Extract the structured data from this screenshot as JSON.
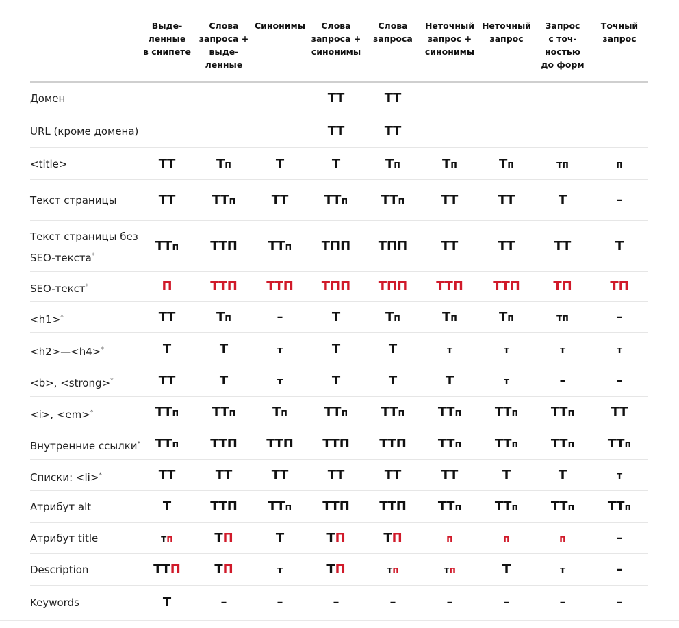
{
  "columns": [
    "Выде-\nленные\nв снипете",
    "Слова\nзапроса +\nвыде-\nленные",
    "Синонимы",
    "Слова\nзапроса +\nсинонимы",
    "Слова\nзапроса",
    "Неточный\nзапрос +\nсинонимы",
    "Неточный\nзапрос",
    "Запрос\nс точ-\nностью\nдо форм",
    "Точный\nзапрос"
  ],
  "colors": {
    "red": "#d01a2a",
    "black": "#111111",
    "header_rule": "#cfcfcf",
    "row_rule": "#e6e6e6"
  },
  "rows": [
    {
      "label": "Домен",
      "star": "",
      "cells": [
        "",
        "",
        "",
        "[{\"t\":\"ТТ\",\"s\":\"b\",\"c\":\"k\"}]",
        "[{\"t\":\"ТТ\",\"s\":\"b\",\"c\":\"k\"}]",
        "",
        "",
        "",
        ""
      ]
    },
    {
      "label": "URL (кроме домена)",
      "star": "",
      "cells": [
        "",
        "",
        "",
        "[{\"t\":\"ТТ\",\"s\":\"b\",\"c\":\"k\"}]",
        "[{\"t\":\"ТТ\",\"s\":\"b\",\"c\":\"k\"}]",
        "",
        "",
        "",
        ""
      ]
    },
    {
      "label": "<title>",
      "star": "",
      "cells": [
        "[{\"t\":\"ТТ\",\"s\":\"b\",\"c\":\"k\"}]",
        "[{\"t\":\"Т\",\"s\":\"b\",\"c\":\"k\"},{\"t\":\"п\",\"s\":\"s\",\"c\":\"k\"}]",
        "[{\"t\":\"Т\",\"s\":\"b\",\"c\":\"k\"}]",
        "[{\"t\":\"Т\",\"s\":\"b\",\"c\":\"k\"}]",
        "[{\"t\":\"Т\",\"s\":\"b\",\"c\":\"k\"},{\"t\":\"п\",\"s\":\"s\",\"c\":\"k\"}]",
        "[{\"t\":\"Т\",\"s\":\"b\",\"c\":\"k\"},{\"t\":\"п\",\"s\":\"s\",\"c\":\"k\"}]",
        "[{\"t\":\"Т\",\"s\":\"b\",\"c\":\"k\"},{\"t\":\"п\",\"s\":\"s\",\"c\":\"k\"}]",
        "[{\"t\":\"тп\",\"s\":\"s\",\"c\":\"k\"}]",
        "[{\"t\":\"п\",\"s\":\"s\",\"c\":\"k\"}]"
      ]
    },
    {
      "label": "Текст страницы",
      "star": "",
      "cells": [
        "[{\"t\":\"ТТ\",\"s\":\"b\",\"c\":\"k\"}]",
        "[{\"t\":\"ТТ\",\"s\":\"b\",\"c\":\"k\"},{\"t\":\"п\",\"s\":\"s\",\"c\":\"k\"}]",
        "[{\"t\":\"ТТ\",\"s\":\"b\",\"c\":\"k\"}]",
        "[{\"t\":\"ТТ\",\"s\":\"b\",\"c\":\"k\"},{\"t\":\"п\",\"s\":\"s\",\"c\":\"k\"}]",
        "[{\"t\":\"ТТ\",\"s\":\"b\",\"c\":\"k\"},{\"t\":\"п\",\"s\":\"s\",\"c\":\"k\"}]",
        "[{\"t\":\"ТТ\",\"s\":\"b\",\"c\":\"k\"}]",
        "[{\"t\":\"ТТ\",\"s\":\"b\",\"c\":\"k\"}]",
        "[{\"t\":\"Т\",\"s\":\"b\",\"c\":\"k\"}]",
        "[{\"t\":\"–\",\"s\":\"b\",\"c\":\"k\"}]"
      ]
    },
    {
      "label": "Текст страницы без\nSEO-текста",
      "star": "*",
      "cells": [
        "[{\"t\":\"ТТ\",\"s\":\"b\",\"c\":\"k\"},{\"t\":\"п\",\"s\":\"s\",\"c\":\"k\"}]",
        "[{\"t\":\"ТТП\",\"s\":\"b\",\"c\":\"k\"}]",
        "[{\"t\":\"ТТ\",\"s\":\"b\",\"c\":\"k\"},{\"t\":\"п\",\"s\":\"s\",\"c\":\"k\"}]",
        "[{\"t\":\"ТПП\",\"s\":\"b\",\"c\":\"k\"}]",
        "[{\"t\":\"ТПП\",\"s\":\"b\",\"c\":\"k\"}]",
        "[{\"t\":\"ТТ\",\"s\":\"b\",\"c\":\"k\"}]",
        "[{\"t\":\"ТТ\",\"s\":\"b\",\"c\":\"k\"}]",
        "[{\"t\":\"ТТ\",\"s\":\"b\",\"c\":\"k\"}]",
        "[{\"t\":\"Т\",\"s\":\"b\",\"c\":\"k\"}]"
      ]
    },
    {
      "label": "SEO-текст",
      "star": "*",
      "cells": [
        "[{\"t\":\"П\",\"s\":\"b\",\"c\":\"r\"}]",
        "[{\"t\":\"ТТП\",\"s\":\"b\",\"c\":\"r\"}]",
        "[{\"t\":\"ТТП\",\"s\":\"b\",\"c\":\"r\"}]",
        "[{\"t\":\"ТПП\",\"s\":\"b\",\"c\":\"r\"}]",
        "[{\"t\":\"ТПП\",\"s\":\"b\",\"c\":\"r\"}]",
        "[{\"t\":\"ТТП\",\"s\":\"b\",\"c\":\"r\"}]",
        "[{\"t\":\"ТТП\",\"s\":\"b\",\"c\":\"r\"}]",
        "[{\"t\":\"ТП\",\"s\":\"b\",\"c\":\"r\"}]",
        "[{\"t\":\"ТП\",\"s\":\"b\",\"c\":\"r\"}]"
      ]
    },
    {
      "label": "<h1>",
      "star": "*",
      "cells": [
        "[{\"t\":\"ТТ\",\"s\":\"b\",\"c\":\"k\"}]",
        "[{\"t\":\"Т\",\"s\":\"b\",\"c\":\"k\"},{\"t\":\"п\",\"s\":\"s\",\"c\":\"k\"}]",
        "[{\"t\":\"–\",\"s\":\"b\",\"c\":\"k\"}]",
        "[{\"t\":\"Т\",\"s\":\"b\",\"c\":\"k\"}]",
        "[{\"t\":\"Т\",\"s\":\"b\",\"c\":\"k\"},{\"t\":\"п\",\"s\":\"s\",\"c\":\"k\"}]",
        "[{\"t\":\"Т\",\"s\":\"b\",\"c\":\"k\"},{\"t\":\"п\",\"s\":\"s\",\"c\":\"k\"}]",
        "[{\"t\":\"Т\",\"s\":\"b\",\"c\":\"k\"},{\"t\":\"п\",\"s\":\"s\",\"c\":\"k\"}]",
        "[{\"t\":\"тп\",\"s\":\"s\",\"c\":\"k\"}]",
        "[{\"t\":\"–\",\"s\":\"b\",\"c\":\"k\"}]"
      ]
    },
    {
      "label": "<h2>—<h4>",
      "star": "*",
      "cells": [
        "[{\"t\":\"Т\",\"s\":\"b\",\"c\":\"k\"}]",
        "[{\"t\":\"Т\",\"s\":\"b\",\"c\":\"k\"}]",
        "[{\"t\":\"т\",\"s\":\"s\",\"c\":\"k\"}]",
        "[{\"t\":\"Т\",\"s\":\"b\",\"c\":\"k\"}]",
        "[{\"t\":\"Т\",\"s\":\"b\",\"c\":\"k\"}]",
        "[{\"t\":\"т\",\"s\":\"s\",\"c\":\"k\"}]",
        "[{\"t\":\"т\",\"s\":\"s\",\"c\":\"k\"}]",
        "[{\"t\":\"т\",\"s\":\"s\",\"c\":\"k\"}]",
        "[{\"t\":\"т\",\"s\":\"s\",\"c\":\"k\"}]"
      ]
    },
    {
      "label": "<b>, <strong>",
      "star": "*",
      "cells": [
        "[{\"t\":\"ТТ\",\"s\":\"b\",\"c\":\"k\"}]",
        "[{\"t\":\"Т\",\"s\":\"b\",\"c\":\"k\"}]",
        "[{\"t\":\"т\",\"s\":\"s\",\"c\":\"k\"}]",
        "[{\"t\":\"Т\",\"s\":\"b\",\"c\":\"k\"}]",
        "[{\"t\":\"Т\",\"s\":\"b\",\"c\":\"k\"}]",
        "[{\"t\":\"Т\",\"s\":\"b\",\"c\":\"k\"}]",
        "[{\"t\":\"т\",\"s\":\"s\",\"c\":\"k\"}]",
        "[{\"t\":\"–\",\"s\":\"b\",\"c\":\"k\"}]",
        "[{\"t\":\"–\",\"s\":\"b\",\"c\":\"k\"}]"
      ]
    },
    {
      "label": "<i>, <em>",
      "star": "*",
      "cells": [
        "[{\"t\":\"ТТ\",\"s\":\"b\",\"c\":\"k\"},{\"t\":\"п\",\"s\":\"s\",\"c\":\"k\"}]",
        "[{\"t\":\"ТТ\",\"s\":\"b\",\"c\":\"k\"},{\"t\":\"п\",\"s\":\"s\",\"c\":\"k\"}]",
        "[{\"t\":\"Т\",\"s\":\"b\",\"c\":\"k\"},{\"t\":\"п\",\"s\":\"s\",\"c\":\"k\"}]",
        "[{\"t\":\"ТТ\",\"s\":\"b\",\"c\":\"k\"},{\"t\":\"п\",\"s\":\"s\",\"c\":\"k\"}]",
        "[{\"t\":\"ТТ\",\"s\":\"b\",\"c\":\"k\"},{\"t\":\"п\",\"s\":\"s\",\"c\":\"k\"}]",
        "[{\"t\":\"ТТ\",\"s\":\"b\",\"c\":\"k\"},{\"t\":\"п\",\"s\":\"s\",\"c\":\"k\"}]",
        "[{\"t\":\"ТТ\",\"s\":\"b\",\"c\":\"k\"},{\"t\":\"п\",\"s\":\"s\",\"c\":\"k\"}]",
        "[{\"t\":\"ТТ\",\"s\":\"b\",\"c\":\"k\"},{\"t\":\"п\",\"s\":\"s\",\"c\":\"k\"}]",
        "[{\"t\":\"ТТ\",\"s\":\"b\",\"c\":\"k\"}]"
      ]
    },
    {
      "label": "Внутренние ссылки",
      "star": "*",
      "cells": [
        "[{\"t\":\"ТТ\",\"s\":\"b\",\"c\":\"k\"},{\"t\":\"п\",\"s\":\"s\",\"c\":\"k\"}]",
        "[{\"t\":\"ТТП\",\"s\":\"b\",\"c\":\"k\"}]",
        "[{\"t\":\"ТТП\",\"s\":\"b\",\"c\":\"k\"}]",
        "[{\"t\":\"ТТП\",\"s\":\"b\",\"c\":\"k\"}]",
        "[{\"t\":\"ТТП\",\"s\":\"b\",\"c\":\"k\"}]",
        "[{\"t\":\"ТТ\",\"s\":\"b\",\"c\":\"k\"},{\"t\":\"п\",\"s\":\"s\",\"c\":\"k\"}]",
        "[{\"t\":\"ТТ\",\"s\":\"b\",\"c\":\"k\"},{\"t\":\"п\",\"s\":\"s\",\"c\":\"k\"}]",
        "[{\"t\":\"ТТ\",\"s\":\"b\",\"c\":\"k\"},{\"t\":\"п\",\"s\":\"s\",\"c\":\"k\"}]",
        "[{\"t\":\"ТТ\",\"s\":\"b\",\"c\":\"k\"},{\"t\":\"п\",\"s\":\"s\",\"c\":\"k\"}]"
      ]
    },
    {
      "label": "Списки: <li>",
      "star": "*",
      "cells": [
        "[{\"t\":\"ТТ\",\"s\":\"b\",\"c\":\"k\"}]",
        "[{\"t\":\"ТТ\",\"s\":\"b\",\"c\":\"k\"}]",
        "[{\"t\":\"ТТ\",\"s\":\"b\",\"c\":\"k\"}]",
        "[{\"t\":\"ТТ\",\"s\":\"b\",\"c\":\"k\"}]",
        "[{\"t\":\"ТТ\",\"s\":\"b\",\"c\":\"k\"}]",
        "[{\"t\":\"ТТ\",\"s\":\"b\",\"c\":\"k\"}]",
        "[{\"t\":\"Т\",\"s\":\"b\",\"c\":\"k\"}]",
        "[{\"t\":\"Т\",\"s\":\"b\",\"c\":\"k\"}]",
        "[{\"t\":\"т\",\"s\":\"s\",\"c\":\"k\"}]"
      ]
    },
    {
      "label": "Атрибут alt",
      "star": "",
      "cells": [
        "[{\"t\":\"Т\",\"s\":\"b\",\"c\":\"k\"}]",
        "[{\"t\":\"ТТП\",\"s\":\"b\",\"c\":\"k\"}]",
        "[{\"t\":\"ТТ\",\"s\":\"b\",\"c\":\"k\"},{\"t\":\"п\",\"s\":\"s\",\"c\":\"k\"}]",
        "[{\"t\":\"ТТП\",\"s\":\"b\",\"c\":\"k\"}]",
        "[{\"t\":\"ТТП\",\"s\":\"b\",\"c\":\"k\"}]",
        "[{\"t\":\"ТТ\",\"s\":\"b\",\"c\":\"k\"},{\"t\":\"п\",\"s\":\"s\",\"c\":\"k\"}]",
        "[{\"t\":\"ТТ\",\"s\":\"b\",\"c\":\"k\"},{\"t\":\"п\",\"s\":\"s\",\"c\":\"k\"}]",
        "[{\"t\":\"ТТ\",\"s\":\"b\",\"c\":\"k\"},{\"t\":\"п\",\"s\":\"s\",\"c\":\"k\"}]",
        "[{\"t\":\"ТТ\",\"s\":\"b\",\"c\":\"k\"},{\"t\":\"п\",\"s\":\"s\",\"c\":\"k\"}]"
      ]
    },
    {
      "label": "Атрибут title",
      "star": "",
      "cells": [
        "[{\"t\":\"т\",\"s\":\"s\",\"c\":\"k\"},{\"t\":\"п\",\"s\":\"s\",\"c\":\"r\"}]",
        "[{\"t\":\"Т\",\"s\":\"b\",\"c\":\"k\"},{\"t\":\"П\",\"s\":\"b\",\"c\":\"r\"}]",
        "[{\"t\":\"Т\",\"s\":\"b\",\"c\":\"k\"}]",
        "[{\"t\":\"Т\",\"s\":\"b\",\"c\":\"k\"},{\"t\":\"П\",\"s\":\"b\",\"c\":\"r\"}]",
        "[{\"t\":\"Т\",\"s\":\"b\",\"c\":\"k\"},{\"t\":\"П\",\"s\":\"b\",\"c\":\"r\"}]",
        "[{\"t\":\"п\",\"s\":\"s\",\"c\":\"r\"}]",
        "[{\"t\":\"п\",\"s\":\"s\",\"c\":\"r\"}]",
        "[{\"t\":\"п\",\"s\":\"s\",\"c\":\"r\"}]",
        "[{\"t\":\"–\",\"s\":\"b\",\"c\":\"k\"}]"
      ]
    },
    {
      "label": "Description",
      "star": "",
      "cells": [
        "[{\"t\":\"ТТ\",\"s\":\"b\",\"c\":\"k\"},{\"t\":\"П\",\"s\":\"b\",\"c\":\"r\"}]",
        "[{\"t\":\"Т\",\"s\":\"b\",\"c\":\"k\"},{\"t\":\"П\",\"s\":\"b\",\"c\":\"r\"}]",
        "[{\"t\":\"т\",\"s\":\"s\",\"c\":\"k\"}]",
        "[{\"t\":\"Т\",\"s\":\"b\",\"c\":\"k\"},{\"t\":\"П\",\"s\":\"b\",\"c\":\"r\"}]",
        "[{\"t\":\"т\",\"s\":\"s\",\"c\":\"k\"},{\"t\":\"п\",\"s\":\"s\",\"c\":\"r\"}]",
        "[{\"t\":\"т\",\"s\":\"s\",\"c\":\"k\"},{\"t\":\"п\",\"s\":\"s\",\"c\":\"r\"}]",
        "[{\"t\":\"Т\",\"s\":\"b\",\"c\":\"k\"}]",
        "[{\"t\":\"т\",\"s\":\"s\",\"c\":\"k\"}]",
        "[{\"t\":\"–\",\"s\":\"b\",\"c\":\"k\"}]"
      ]
    },
    {
      "label": "Keywords",
      "star": "",
      "cells": [
        "[{\"t\":\"Т\",\"s\":\"b\",\"c\":\"k\"}]",
        "[{\"t\":\"–\",\"s\":\"b\",\"c\":\"k\"}]",
        "[{\"t\":\"–\",\"s\":\"b\",\"c\":\"k\"}]",
        "[{\"t\":\"–\",\"s\":\"b\",\"c\":\"k\"}]",
        "[{\"t\":\"–\",\"s\":\"b\",\"c\":\"k\"}]",
        "[{\"t\":\"–\",\"s\":\"b\",\"c\":\"k\"}]",
        "[{\"t\":\"–\",\"s\":\"b\",\"c\":\"k\"}]",
        "[{\"t\":\"–\",\"s\":\"b\",\"c\":\"k\"}]",
        "[{\"t\":\"–\",\"s\":\"b\",\"c\":\"k\"}]"
      ]
    }
  ]
}
